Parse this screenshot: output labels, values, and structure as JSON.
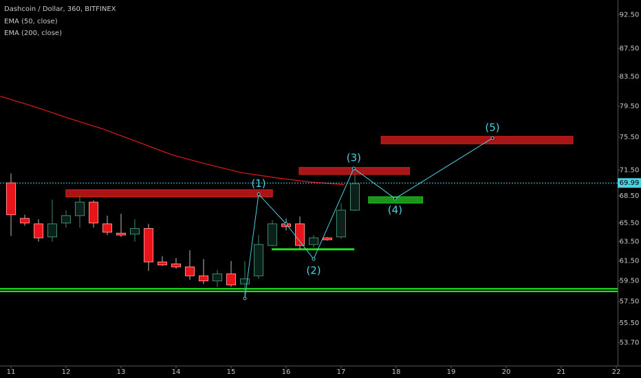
{
  "chart_data": {
    "type": "candlestick",
    "title": "Dashcoin / Dollar, 360, BITFINEX",
    "legend": [
      "EMA (50, close)",
      "EMA (200, close)"
    ],
    "log_scale": true,
    "x": [
      11,
      11.25,
      11.5,
      11.75,
      12,
      12.25,
      12.5,
      12.75,
      13,
      13.25,
      13.5,
      13.75,
      14,
      14.25,
      14.5,
      14.75,
      15,
      15.25,
      15.5,
      15.75,
      16,
      16.25,
      16.5,
      16.75,
      17,
      17.25
    ],
    "open": [
      70.0,
      66.0,
      65.4,
      64.0,
      65.5,
      66.3,
      67.8,
      65.4,
      64.4,
      64.3,
      64.9,
      61.4,
      61.2,
      60.9,
      60.0,
      59.5,
      60.2,
      59.2,
      60.0,
      63.1,
      65.4,
      65.4,
      63.2,
      63.9,
      64.0,
      66.9
    ],
    "high": [
      71.1,
      66.4,
      65.9,
      68.1,
      66.9,
      68.5,
      68.0,
      66.3,
      66.5,
      65.9,
      65.4,
      62.0,
      61.8,
      62.6,
      61.7,
      60.6,
      61.5,
      61.5,
      64.2,
      65.8,
      66.0,
      66.2,
      64.2,
      64.0,
      67.7,
      71.0
    ],
    "low": [
      64.1,
      65.2,
      63.5,
      63.5,
      65.0,
      65.0,
      65.0,
      64.2,
      64.0,
      63.5,
      60.5,
      61.0,
      60.7,
      59.6,
      59.2,
      58.9,
      58.9,
      57.8,
      59.7,
      63.0,
      64.7,
      62.7,
      62.9,
      63.6,
      63.8,
      66.8
    ],
    "close": [
      66.4,
      65.5,
      63.9,
      65.4,
      66.3,
      67.8,
      65.5,
      64.5,
      64.2,
      64.9,
      61.4,
      61.1,
      60.9,
      60.0,
      59.5,
      60.2,
      59.1,
      59.7,
      63.2,
      65.4,
      65.1,
      63.1,
      63.9,
      63.7,
      66.9,
      69.9
    ],
    "up_color": "#3a8c74",
    "down_color": "#e8141a",
    "ema200": {
      "color": "#e31a1a",
      "x": [
        10.81,
        11.44,
        12.06,
        12.69,
        13.31,
        13.94,
        14.56,
        15.19,
        15.81,
        16.44,
        17.06
      ],
      "values": [
        80.8,
        79.4,
        77.9,
        76.5,
        74.9,
        73.3,
        72.2,
        71.2,
        70.6,
        70.1,
        69.8
      ]
    },
    "last_price": 69.99,
    "last_price_color": "#4dd0e1",
    "zones": [
      {
        "color": "#c41a1a",
        "x": [
          12.0,
          15.75
        ],
        "y": [
          69.2,
          68.4
        ]
      },
      {
        "color": "#c41a1a",
        "x": [
          16.24,
          18.24
        ],
        "y": [
          71.8,
          71.0
        ]
      },
      {
        "color": "#c41a1a",
        "x": [
          17.73,
          21.21
        ],
        "y": [
          75.6,
          74.7
        ]
      },
      {
        "color": "#1fae1f",
        "x": [
          17.5,
          18.48
        ],
        "y": [
          68.4,
          67.7
        ]
      }
    ],
    "levels": [
      {
        "color": "#22dd22",
        "x": [
          15.74,
          17.24
        ],
        "value": 62.7
      },
      {
        "color": "#22dd22",
        "x": [
          10.8,
          22.025
        ],
        "value": 58.6
      }
    ],
    "wave": {
      "color": "#4dd0e1",
      "x": [
        15.25,
        15.5,
        16.0,
        16.5,
        17.23,
        17.98,
        19.75
      ],
      "values": [
        57.8,
        68.7,
        65.4,
        61.7,
        71.7,
        68.2,
        75.4
      ],
      "labels": [
        null,
        "(1)",
        null,
        "(2)",
        "(3)",
        "(4)",
        "(5)"
      ],
      "label_side": [
        null,
        "above",
        null,
        "below",
        "above",
        "below",
        "above"
      ]
    },
    "xlim": [
      10.8,
      22.025
    ],
    "xticks": [
      11,
      12,
      13,
      14,
      15,
      16,
      17,
      18,
      19,
      20,
      21,
      22
    ],
    "ylim": [
      51.7,
      94.8
    ],
    "yticks": [
      {
        "value": 92.5,
        "label": "92.50"
      },
      {
        "value": 87.5,
        "label": "87.50"
      },
      {
        "value": 83.5,
        "label": "83.50"
      },
      {
        "value": 79.5,
        "label": "79.50"
      },
      {
        "value": 75.5,
        "label": "75.50"
      },
      {
        "value": 71.5,
        "label": "71.50"
      },
      {
        "value": 68.5,
        "label": "68.50"
      },
      {
        "value": 65.5,
        "label": "65.50"
      },
      {
        "value": 63.5,
        "label": "63.50"
      },
      {
        "value": 61.5,
        "label": "61.50"
      },
      {
        "value": 59.5,
        "label": "59.50"
      },
      {
        "value": 57.5,
        "label": "57.50"
      },
      {
        "value": 55.5,
        "label": "55.50"
      },
      {
        "value": 53.7,
        "label": "53.70"
      }
    ]
  }
}
